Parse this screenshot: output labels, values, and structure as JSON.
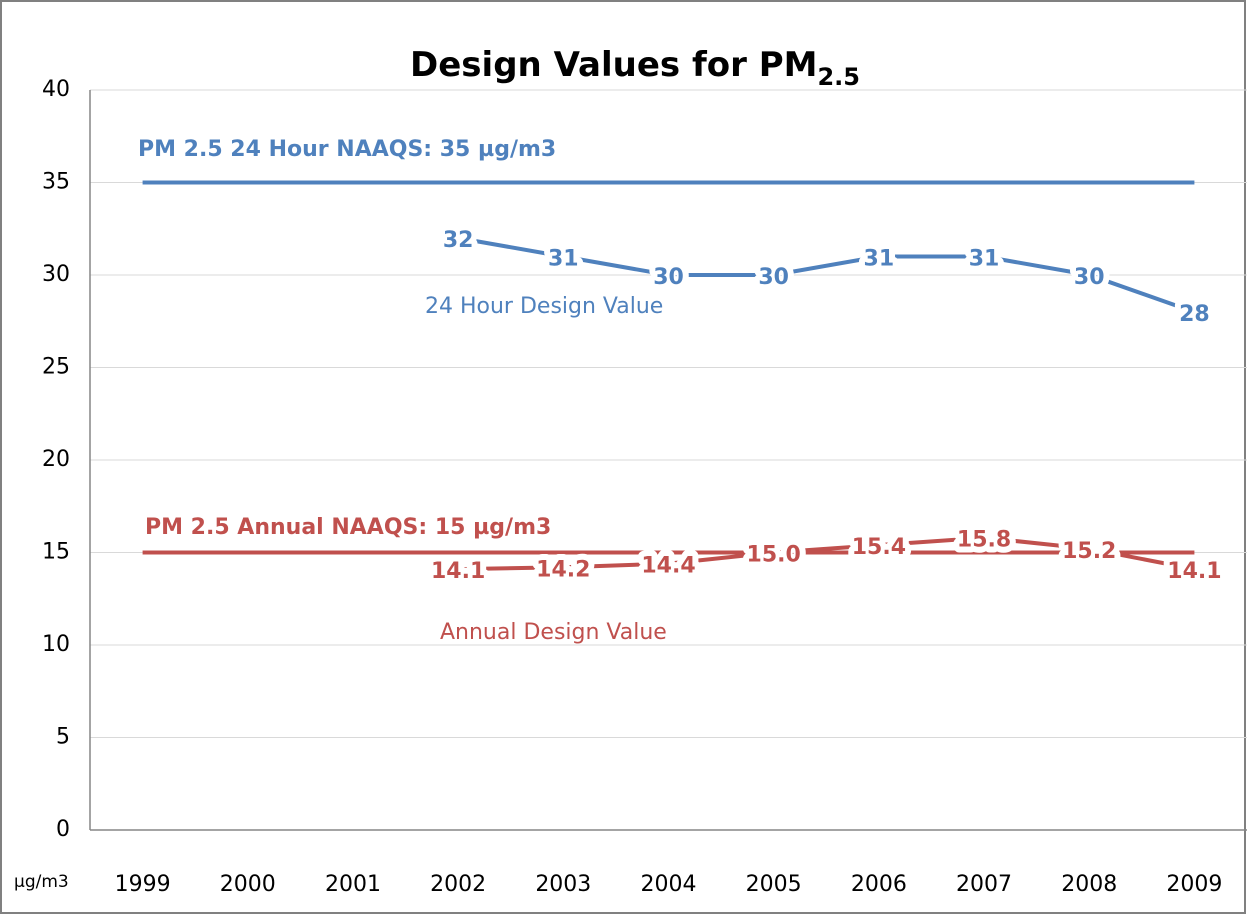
{
  "chart_data": {
    "type": "line",
    "title": {
      "text": "Design Values for PM",
      "subscript": "2.5"
    },
    "y_unit_label": "µg/m3",
    "categories": [
      "1999",
      "2000",
      "2001",
      "2002",
      "2003",
      "2004",
      "2005",
      "2006",
      "2007",
      "2008",
      "2009"
    ],
    "series": [
      {
        "name": "PM 2.5 24 Hour NAAQS: 35 µg/m3",
        "color": "#4f81bd",
        "values": [
          35,
          35,
          35,
          35,
          35,
          35,
          35,
          35,
          35,
          35,
          35
        ]
      },
      {
        "name": "24 Hour Design Value",
        "color": "#4f81bd",
        "values": [
          null,
          null,
          null,
          32,
          31,
          30,
          30,
          31,
          31,
          30,
          28
        ]
      },
      {
        "name": "PM 2.5 Annual NAAQS: 15 µg/m3",
        "color": "#c0504d",
        "values": [
          15,
          15,
          15,
          15,
          15,
          15,
          15,
          15,
          15,
          15,
          15
        ]
      },
      {
        "name": "Annual Design Value",
        "color": "#c0504d",
        "values": [
          null,
          null,
          null,
          14.1,
          14.2,
          14.4,
          15,
          15.4,
          15.8,
          15.2,
          14.1
        ],
        "value_labels": [
          null,
          null,
          null,
          "14.1",
          "14.2",
          "14.4",
          "15.0",
          "15.4",
          "15.8",
          "15.2",
          "14.1"
        ]
      }
    ],
    "ylim": [
      0,
      40
    ],
    "yticks": [
      0,
      5,
      10,
      15,
      20,
      25,
      30,
      35,
      40
    ],
    "grid": true
  }
}
